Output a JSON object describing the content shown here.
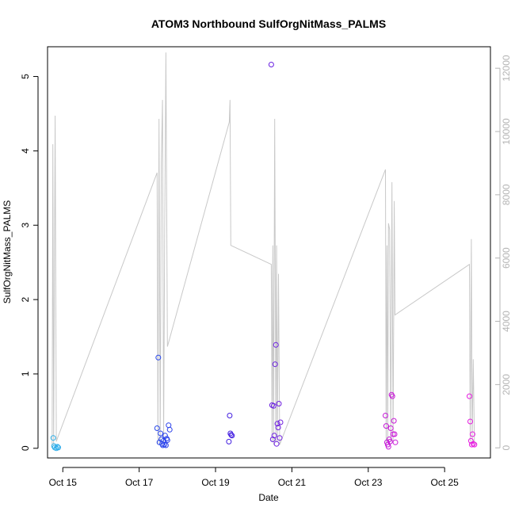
{
  "chart_data": {
    "type": "scatter",
    "title": "ATOM3 Northbound SulfOrgNitMass_PALMS",
    "xlabel": "Date",
    "ylabel": "SulfOrgNitMass_PALMS",
    "x_ticks": [
      "Oct 15",
      "Oct 17",
      "Oct 19",
      "Oct 21",
      "Oct 23",
      "Oct 25"
    ],
    "x_tick_days": [
      15,
      17,
      19,
      21,
      23,
      25
    ],
    "xlim": [
      14.6,
      26.2
    ],
    "y_ticks": [
      "0",
      "1",
      "2",
      "3",
      "4",
      "5"
    ],
    "y_tick_values": [
      0,
      1,
      2,
      3,
      4,
      5
    ],
    "ylim": [
      -0.13,
      5.4
    ],
    "y2_ticks": [
      "0",
      "2000",
      "4000",
      "6000",
      "8000",
      "10000",
      "12000"
    ],
    "y2_tick_values": [
      0,
      2000,
      4000,
      6000,
      8000,
      10000,
      12000
    ],
    "y2lim": [
      -320,
      12680
    ],
    "grid": false,
    "colors": {
      "line": "#c8c8c8",
      "point_gradient": [
        "#2db0ea",
        "#2255f0",
        "#3a1ee0",
        "#8a22e2",
        "#c81ad8",
        "#e81ce0"
      ],
      "right_axis": "#b4b4b4"
    },
    "points": [
      {
        "x": 14.75,
        "y": 0.14
      },
      {
        "x": 14.77,
        "y": 0.03
      },
      {
        "x": 14.79,
        "y": 0.01
      },
      {
        "x": 14.83,
        "y": 0.0
      },
      {
        "x": 14.86,
        "y": 0.02
      },
      {
        "x": 14.88,
        "y": 0.01
      },
      {
        "x": 17.47,
        "y": 0.27
      },
      {
        "x": 17.5,
        "y": 1.22
      },
      {
        "x": 17.53,
        "y": 0.08
      },
      {
        "x": 17.56,
        "y": 0.2
      },
      {
        "x": 17.58,
        "y": 0.12
      },
      {
        "x": 17.6,
        "y": 0.06
      },
      {
        "x": 17.62,
        "y": 0.04
      },
      {
        "x": 17.64,
        "y": 0.1
      },
      {
        "x": 17.66,
        "y": 0.05
      },
      {
        "x": 17.68,
        "y": 0.17
      },
      {
        "x": 17.7,
        "y": 0.04
      },
      {
        "x": 17.72,
        "y": 0.13
      },
      {
        "x": 17.74,
        "y": 0.11
      },
      {
        "x": 17.77,
        "y": 0.31
      },
      {
        "x": 17.8,
        "y": 0.25
      },
      {
        "x": 19.35,
        "y": 0.09
      },
      {
        "x": 19.37,
        "y": 0.44
      },
      {
        "x": 19.39,
        "y": 0.2
      },
      {
        "x": 19.41,
        "y": 0.18
      },
      {
        "x": 19.43,
        "y": 0.17
      },
      {
        "x": 20.46,
        "y": 5.16
      },
      {
        "x": 20.48,
        "y": 0.58
      },
      {
        "x": 20.5,
        "y": 0.12
      },
      {
        "x": 20.52,
        "y": 0.57
      },
      {
        "x": 20.54,
        "y": 0.17
      },
      {
        "x": 20.56,
        "y": 1.13
      },
      {
        "x": 20.58,
        "y": 1.39
      },
      {
        "x": 20.6,
        "y": 0.06
      },
      {
        "x": 20.62,
        "y": 0.33
      },
      {
        "x": 20.64,
        "y": 0.28
      },
      {
        "x": 20.66,
        "y": 0.6
      },
      {
        "x": 20.68,
        "y": 0.14
      },
      {
        "x": 20.7,
        "y": 0.35
      },
      {
        "x": 23.45,
        "y": 0.44
      },
      {
        "x": 23.47,
        "y": 0.3
      },
      {
        "x": 23.49,
        "y": 0.08
      },
      {
        "x": 23.51,
        "y": 0.05
      },
      {
        "x": 23.53,
        "y": 0.02
      },
      {
        "x": 23.55,
        "y": 0.12
      },
      {
        "x": 23.57,
        "y": 0.09
      },
      {
        "x": 23.59,
        "y": 0.27
      },
      {
        "x": 23.61,
        "y": 0.72
      },
      {
        "x": 23.63,
        "y": 0.7
      },
      {
        "x": 23.65,
        "y": 0.19
      },
      {
        "x": 23.67,
        "y": 0.37
      },
      {
        "x": 23.69,
        "y": 0.19
      },
      {
        "x": 23.71,
        "y": 0.08
      },
      {
        "x": 25.65,
        "y": 0.7
      },
      {
        "x": 25.67,
        "y": 0.36
      },
      {
        "x": 25.69,
        "y": 0.1
      },
      {
        "x": 25.71,
        "y": 0.05
      },
      {
        "x": 25.73,
        "y": 0.19
      },
      {
        "x": 25.75,
        "y": 0.06
      },
      {
        "x": 25.78,
        "y": 0.05
      }
    ],
    "altitude_line": [
      [
        14.72,
        0
      ],
      [
        14.74,
        9600
      ],
      [
        14.76,
        100
      ],
      [
        14.8,
        10500
      ],
      [
        14.83,
        200
      ],
      [
        14.86,
        300
      ],
      [
        17.47,
        8700
      ],
      [
        17.49,
        100
      ],
      [
        17.52,
        10400
      ],
      [
        17.55,
        100
      ],
      [
        17.58,
        9000
      ],
      [
        17.61,
        11000
      ],
      [
        17.64,
        200
      ],
      [
        17.67,
        7000
      ],
      [
        17.7,
        12500
      ],
      [
        17.74,
        3200
      ],
      [
        19.36,
        10300
      ],
      [
        19.38,
        11000
      ],
      [
        19.4,
        6400
      ],
      [
        20.46,
        5800
      ],
      [
        20.48,
        200
      ],
      [
        20.5,
        6400
      ],
      [
        20.52,
        100
      ],
      [
        20.55,
        10400
      ],
      [
        20.58,
        200
      ],
      [
        20.6,
        6400
      ],
      [
        20.62,
        200
      ],
      [
        20.65,
        5500
      ],
      [
        20.68,
        100
      ],
      [
        23.45,
        8800
      ],
      [
        23.47,
        100
      ],
      [
        23.49,
        6400
      ],
      [
        23.51,
        200
      ],
      [
        23.53,
        7100
      ],
      [
        23.56,
        6900
      ],
      [
        23.59,
        200
      ],
      [
        23.62,
        8400
      ],
      [
        23.65,
        200
      ],
      [
        23.68,
        7800
      ],
      [
        23.7,
        4200
      ],
      [
        25.65,
        5800
      ],
      [
        25.67,
        200
      ],
      [
        25.7,
        6600
      ],
      [
        25.72,
        200
      ],
      [
        25.75,
        2800
      ],
      [
        25.78,
        100
      ]
    ]
  }
}
